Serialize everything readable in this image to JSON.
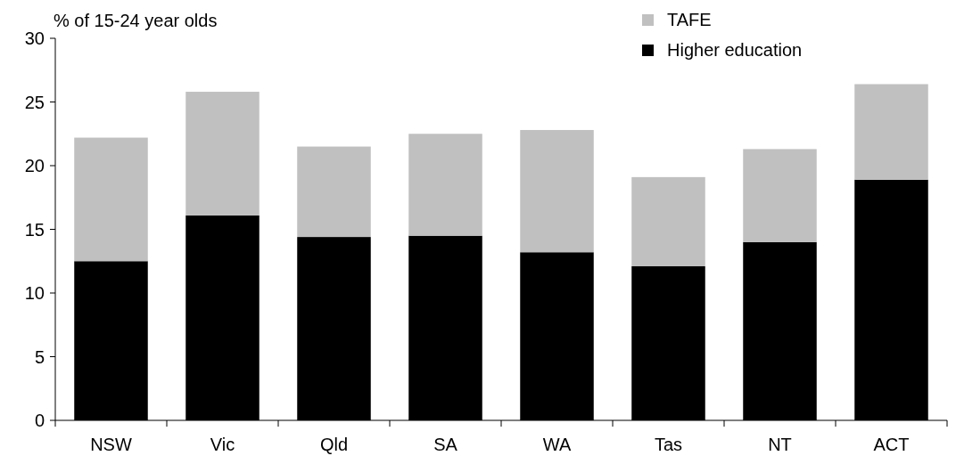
{
  "chart_data": {
    "type": "bar",
    "stacked": true,
    "ylabel": "% of 15-24 year olds",
    "categories": [
      "NSW",
      "Vic",
      "Qld",
      "SA",
      "WA",
      "Tas",
      "NT",
      "ACT"
    ],
    "series": [
      {
        "name": "Higher education",
        "color": "#000000",
        "values": [
          12.5,
          16.1,
          14.4,
          14.5,
          13.2,
          12.1,
          14.0,
          18.9
        ]
      },
      {
        "name": "TAFE",
        "color": "#c0c0c0",
        "values": [
          9.7,
          9.7,
          7.1,
          8.0,
          9.6,
          7.0,
          7.3,
          7.5
        ]
      }
    ],
    "ylim": [
      0,
      30
    ],
    "yticks": [
      0,
      5,
      10,
      15,
      20,
      25,
      30
    ],
    "grid": false,
    "legend": "top right"
  }
}
